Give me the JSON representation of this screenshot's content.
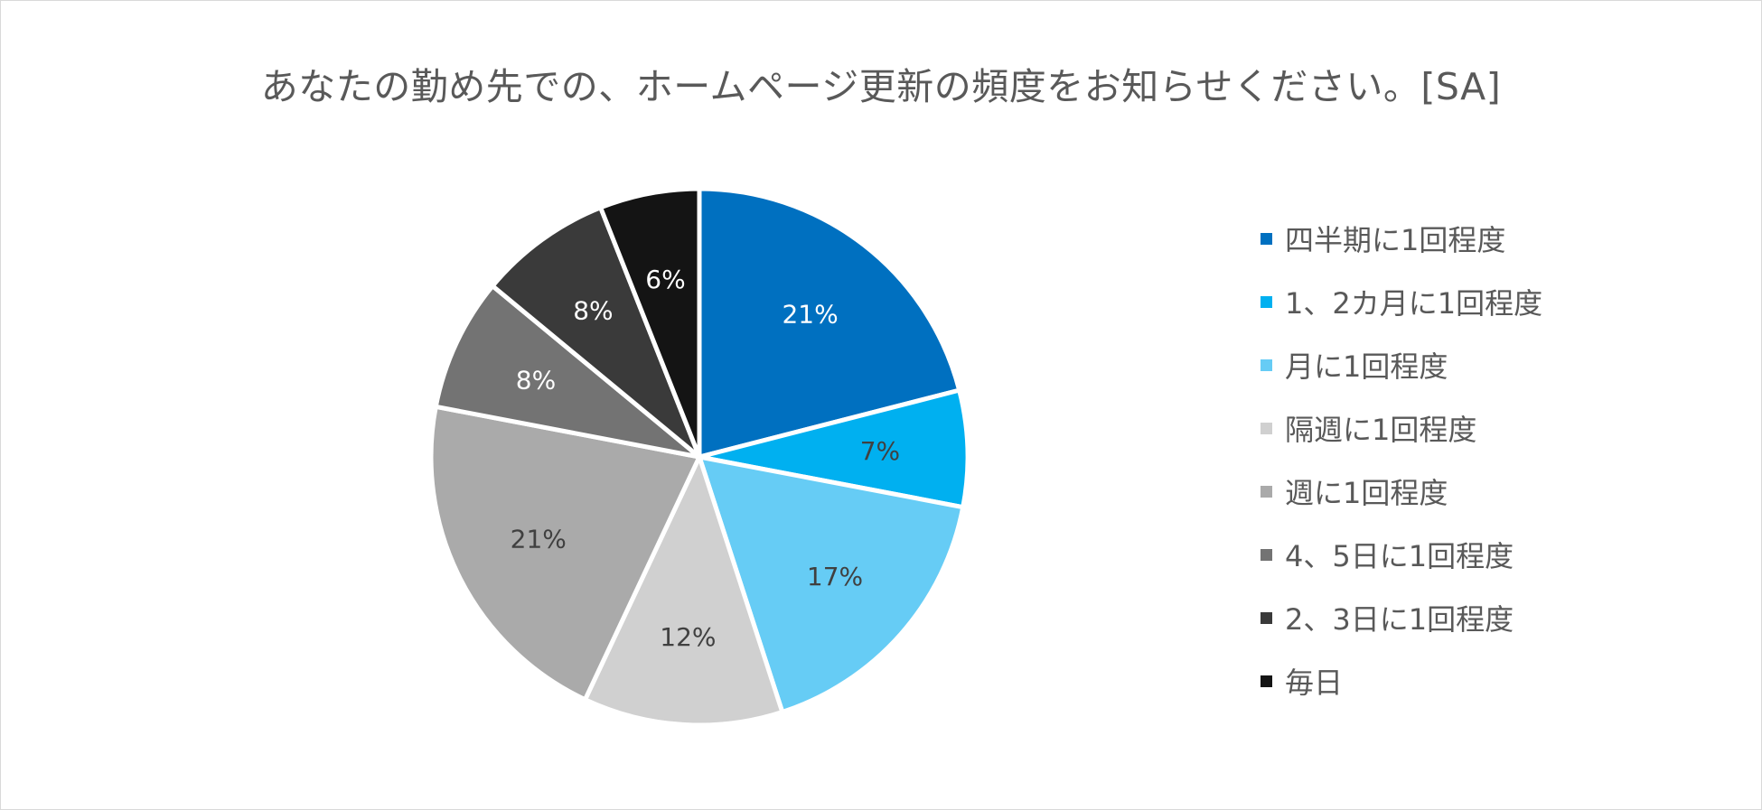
{
  "chart_data": {
    "type": "pie",
    "title": "あなたの勤め先での、ホームページ更新の頻度をお知らせください。[SA]",
    "legend_position": "right",
    "slices": [
      {
        "label": "四半期に1回程度",
        "value": 21,
        "data_label": "21%",
        "color": "#0070c0",
        "label_color": "#ffffff"
      },
      {
        "label": "1、2カ月に1回程度",
        "value": 7,
        "data_label": "7%",
        "color": "#00b0f0",
        "label_color": "#404040"
      },
      {
        "label": "月に1回程度",
        "value": 17,
        "data_label": "17%",
        "color": "#66ccf5",
        "label_color": "#404040"
      },
      {
        "label": "隔週に1回程度",
        "value": 12,
        "data_label": "12%",
        "color": "#d0d0d0",
        "label_color": "#404040"
      },
      {
        "label": "週に1回程度",
        "value": 21,
        "data_label": "21%",
        "color": "#aaaaaa",
        "label_color": "#404040"
      },
      {
        "label": "4、5日に1回程度",
        "value": 8,
        "data_label": "8%",
        "color": "#737373",
        "label_color": "#ffffff"
      },
      {
        "label": "2、3日に1回程度",
        "value": 8,
        "data_label": "8%",
        "color": "#3a3a3a",
        "label_color": "#ffffff"
      },
      {
        "label": "毎日",
        "value": 6,
        "data_label": "6%",
        "color": "#141414",
        "label_color": "#ffffff"
      }
    ]
  }
}
